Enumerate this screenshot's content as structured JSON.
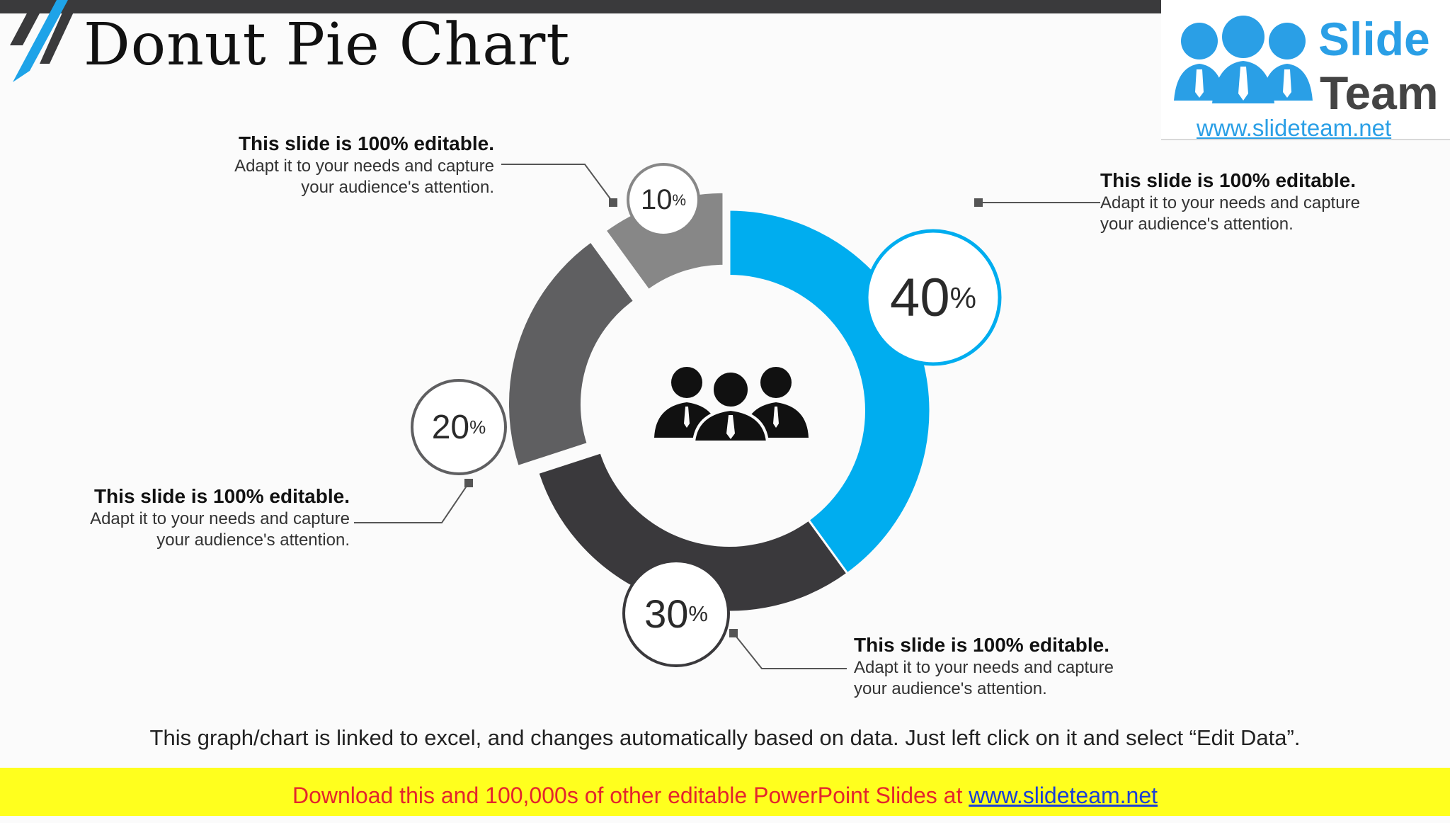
{
  "title": "Donut Pie Chart",
  "logo": {
    "word1": "Slide",
    "word2": "Team",
    "url": "www.slideteam.net"
  },
  "chart_data": {
    "type": "pie",
    "donut": true,
    "slices": [
      {
        "value": 40,
        "label": "40%",
        "color": "#00adef"
      },
      {
        "value": 30,
        "label": "30%",
        "color": "#3a393c"
      },
      {
        "value": 20,
        "label": "20%",
        "color": "#5f5f61"
      },
      {
        "value": 10,
        "label": "10%",
        "color": "#878787"
      }
    ],
    "center_icon": "people-group-icon"
  },
  "callouts": [
    {
      "heading": "This slide is 100% editable.",
      "line1": "Adapt it to your needs and capture",
      "line2": "your audience's attention."
    },
    {
      "heading": "This slide is 100% editable.",
      "line1": "Adapt it to your needs and capture",
      "line2": "your audience's attention."
    },
    {
      "heading": "This slide is 100% editable.",
      "line1": "Adapt it to your needs and capture",
      "line2": "your audience's attention."
    },
    {
      "heading": "This slide is 100% editable.",
      "line1": "Adapt it to your needs and capture",
      "line2": "your audience's attention."
    }
  ],
  "footer_note": "This graph/chart is linked to excel, and changes automatically based on data. Just left click on it and select “Edit Data”.",
  "banner": {
    "text": "Download this and 100,000s of other editable PowerPoint Slides at ",
    "link": "www.slideteam.net"
  },
  "colors": {
    "accent": "#00adef",
    "banner_bg": "#ffff1e",
    "banner_text": "#e3262d"
  }
}
